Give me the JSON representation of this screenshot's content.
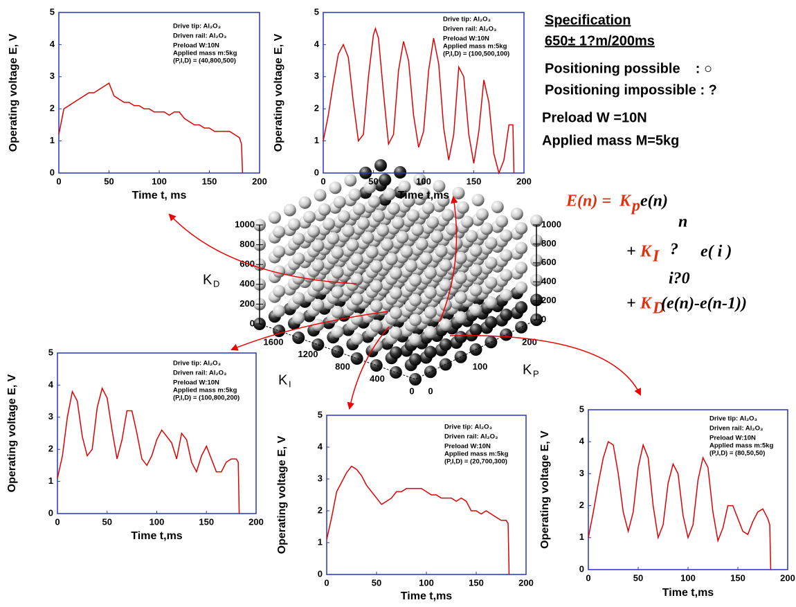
{
  "chart_data": [
    {
      "type": "line",
      "xlabel": "Time t, ms",
      "ylabel": "Operating voltage E, V",
      "color": "#dd0000",
      "annotations": [
        "Drive tip: Al₂O₃",
        "Driven rail: Al₂O₃",
        "Preload W:10N",
        "Applied mass m:5kg",
        "(P,I,D) = (40,800,500)"
      ],
      "xlim": [
        0,
        200
      ],
      "ylim": [
        0,
        5
      ],
      "xticks": [
        0,
        50,
        100,
        150,
        200
      ],
      "yticks": [
        0,
        1,
        2,
        3,
        4,
        5
      ],
      "x": [
        0,
        5,
        10,
        15,
        20,
        25,
        30,
        35,
        40,
        45,
        50,
        55,
        60,
        65,
        70,
        75,
        80,
        85,
        90,
        95,
        100,
        105,
        110,
        115,
        120,
        125,
        130,
        135,
        140,
        145,
        150,
        155,
        160,
        165,
        170,
        175,
        180,
        182,
        183
      ],
      "values": [
        1.2,
        2.0,
        2.1,
        2.2,
        2.3,
        2.4,
        2.5,
        2.5,
        2.6,
        2.7,
        2.8,
        2.4,
        2.3,
        2.2,
        2.2,
        2.1,
        2.1,
        2.0,
        2.0,
        1.9,
        1.9,
        1.9,
        1.8,
        1.9,
        1.9,
        1.7,
        1.6,
        1.5,
        1.5,
        1.4,
        1.4,
        1.3,
        1.3,
        1.3,
        1.3,
        1.2,
        1.1,
        0.9,
        0
      ]
    },
    {
      "type": "line",
      "xlabel": "Time t,ms",
      "ylabel": "Operating voltage E, V",
      "color": "#dd0000",
      "annotations": [
        "Drive tip: Al₂O₃",
        "Driven rail: Al₂O₃",
        "Preload W:10N",
        "Applied mass m:5kg",
        "(P,I,D) = (100,500,100)"
      ],
      "xlim": [
        0,
        200
      ],
      "ylim": [
        0,
        5
      ],
      "xticks": [
        0,
        50,
        100,
        150,
        200
      ],
      "yticks": [
        0,
        1,
        2,
        3,
        4,
        5
      ],
      "x": [
        0,
        5,
        10,
        15,
        20,
        25,
        30,
        35,
        40,
        45,
        50,
        52,
        55,
        60,
        65,
        70,
        75,
        80,
        85,
        90,
        95,
        100,
        105,
        110,
        115,
        120,
        125,
        130,
        135,
        140,
        145,
        150,
        155,
        160,
        165,
        170,
        175,
        180,
        185,
        189,
        190
      ],
      "values": [
        1.0,
        1.8,
        2.8,
        3.7,
        4.0,
        3.6,
        2.2,
        1.0,
        1.2,
        3.0,
        4.3,
        4.5,
        4.2,
        2.5,
        0.9,
        1.2,
        3.2,
        4.1,
        3.5,
        1.8,
        0.8,
        1.3,
        3.2,
        4.2,
        3.4,
        1.4,
        0.4,
        1.2,
        3.3,
        3.0,
        1.2,
        0.3,
        1.3,
        2.9,
        2.2,
        0.6,
        0.0,
        0.4,
        1.5,
        1.5,
        0
      ]
    },
    {
      "type": "line",
      "xlabel": "Time t,ms",
      "ylabel": "Operating voltage E, V",
      "color": "#dd0000",
      "annotations": [
        "Drive tip: Al₂O₃",
        "Driven rail: Al₂O₃",
        "Preload W:10N",
        "Applied mass m:5kg",
        "(P,I,D) = (100,800,200)"
      ],
      "xlim": [
        0,
        200
      ],
      "ylim": [
        0,
        5
      ],
      "xticks": [
        0,
        50,
        100,
        150,
        200
      ],
      "yticks": [
        0,
        1,
        2,
        3,
        4,
        5
      ],
      "x": [
        0,
        5,
        10,
        15,
        20,
        25,
        30,
        35,
        40,
        45,
        50,
        55,
        60,
        65,
        70,
        75,
        80,
        85,
        90,
        95,
        100,
        105,
        110,
        115,
        120,
        125,
        130,
        135,
        140,
        145,
        150,
        155,
        160,
        165,
        170,
        175,
        180,
        182,
        183
      ],
      "values": [
        1.1,
        1.8,
        3.0,
        3.8,
        3.5,
        2.4,
        1.8,
        2.0,
        3.3,
        3.9,
        3.6,
        2.6,
        1.7,
        2.3,
        3.2,
        3.2,
        2.5,
        1.7,
        1.5,
        1.8,
        2.3,
        2.6,
        2.4,
        2.2,
        1.7,
        2.5,
        2.3,
        1.6,
        1.3,
        1.8,
        2.1,
        1.7,
        1.3,
        1.3,
        1.6,
        1.7,
        1.7,
        1.6,
        0
      ]
    },
    {
      "type": "line",
      "xlabel": "Time t,ms",
      "ylabel": "Operating voltage E, V",
      "color": "#dd0000",
      "annotations": [
        "Drive tip: Al₂O₃",
        "Driven rail: Al₂O₃",
        "Preload W:10N",
        "Applied mass m:5kg",
        "(P,I,D) = (20,700,300)"
      ],
      "xlim": [
        0,
        200
      ],
      "ylim": [
        0,
        5
      ],
      "xticks": [
        0,
        50,
        100,
        150,
        200
      ],
      "yticks": [
        0,
        1,
        2,
        3,
        4,
        5
      ],
      "x": [
        0,
        5,
        10,
        15,
        20,
        25,
        30,
        35,
        40,
        45,
        50,
        55,
        60,
        65,
        70,
        75,
        80,
        85,
        90,
        95,
        100,
        105,
        110,
        115,
        120,
        125,
        130,
        135,
        140,
        145,
        150,
        155,
        160,
        165,
        170,
        175,
        180,
        182,
        183
      ],
      "values": [
        1.1,
        1.8,
        2.6,
        2.9,
        3.2,
        3.4,
        3.3,
        3.1,
        2.8,
        2.6,
        2.4,
        2.2,
        2.3,
        2.4,
        2.6,
        2.6,
        2.7,
        2.7,
        2.7,
        2.7,
        2.6,
        2.5,
        2.5,
        2.4,
        2.4,
        2.4,
        2.3,
        2.4,
        2.3,
        2.0,
        2.0,
        1.9,
        2.0,
        1.9,
        1.8,
        1.7,
        1.7,
        1.6,
        0
      ]
    },
    {
      "type": "line",
      "xlabel": "Time t,ms",
      "ylabel": "Operating voltage E, V",
      "color": "#dd0000",
      "annotations": [
        "Drive tip: Al₂O₃",
        "Driven rail: Al₂O₃",
        "Preload W:10N",
        "Applied mass m:5kg",
        "(P,I,D) = (80,50,50)"
      ],
      "xlim": [
        0,
        200
      ],
      "ylim": [
        0,
        5
      ],
      "xticks": [
        0,
        50,
        100,
        150,
        200
      ],
      "yticks": [
        0,
        1,
        2,
        3,
        4,
        5
      ],
      "x": [
        0,
        5,
        10,
        15,
        20,
        25,
        30,
        35,
        40,
        45,
        50,
        55,
        60,
        65,
        70,
        75,
        80,
        85,
        90,
        95,
        100,
        105,
        110,
        115,
        120,
        125,
        130,
        135,
        140,
        145,
        150,
        155,
        160,
        165,
        170,
        175,
        180,
        182,
        183
      ],
      "values": [
        1.0,
        1.8,
        2.7,
        3.5,
        4.0,
        3.9,
        3.0,
        1.8,
        1.2,
        1.8,
        3.2,
        3.9,
        3.5,
        2.0,
        1.0,
        1.4,
        2.7,
        3.3,
        3.0,
        1.7,
        1.0,
        1.4,
        2.8,
        3.5,
        3.2,
        1.8,
        0.9,
        1.3,
        2.0,
        2.0,
        1.6,
        1.2,
        1.1,
        1.5,
        1.8,
        1.9,
        1.6,
        1.4,
        0
      ]
    },
    {
      "type": "scatter3d",
      "zlabel": {
        "main": "K",
        "sub": "D"
      },
      "xlabel": {
        "main": "K",
        "sub": "I"
      },
      "ylabel": {
        "main": "K",
        "sub": "P"
      },
      "zlim": [
        0,
        1000
      ],
      "zticks": [
        0,
        200,
        400,
        600,
        800,
        1000
      ],
      "xlim": [
        0,
        1600
      ],
      "xticks": [
        0,
        400,
        800,
        1200,
        1600
      ],
      "ylim": [
        0,
        200
      ],
      "yticks": [
        0,
        100,
        200
      ]
    }
  ],
  "specification": {
    "title": "Specification",
    "tolerance": "650± 1?m/200ms",
    "possible": "Positioning possible    : ○",
    "impossible": "Positioning impossible : ?",
    "preload": "Preload W =10N",
    "mass": "Applied mass M=5kg"
  },
  "equation": {
    "lhs": "E(n) =",
    "k": "K",
    "sub_p": "p",
    "sub_i": "I",
    "sub_d": "D",
    "t1": "e(n)",
    "plus": "+",
    "sum_top": "n",
    "sum_sign": "?",
    "t2": "e( i )",
    "sum_bottom": "i?0",
    "t3": "(e(n)-e(n-1))"
  }
}
